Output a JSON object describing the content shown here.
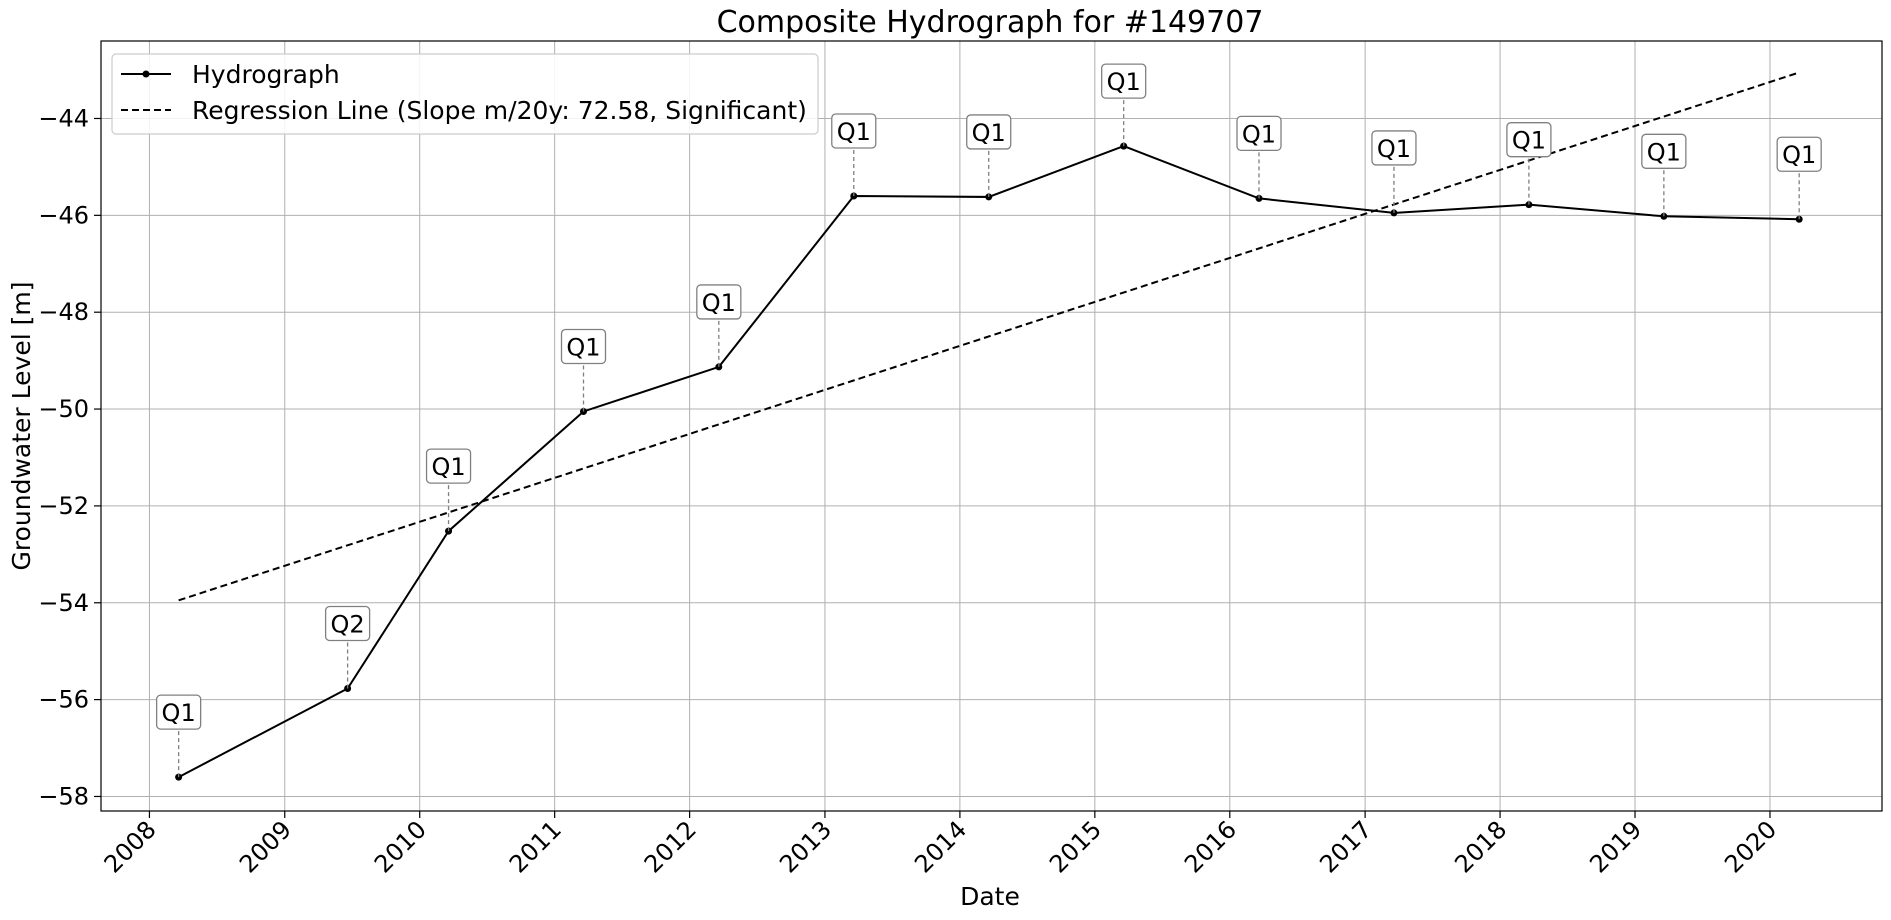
{
  "chart_data": {
    "type": "line",
    "title": "Composite Hydrograph for  #149707",
    "xlabel": "Date",
    "ylabel": "Groundwater Level [m]",
    "x_ticks": [
      "2008",
      "2009",
      "2010",
      "2011",
      "2012",
      "2013",
      "2014",
      "2015",
      "2016",
      "2017",
      "2018",
      "2019",
      "2020"
    ],
    "y_ticks": [
      "−58",
      "−56",
      "−54",
      "−52",
      "−50",
      "−48",
      "−46",
      "−44"
    ],
    "y_tick_values": [
      -58,
      -56,
      -54,
      -52,
      -50,
      -48,
      -46,
      -44
    ],
    "xlim": [
      "2007-08-23",
      "2020-10-30"
    ],
    "ylim": [
      -58.3,
      -42.4
    ],
    "grid": true,
    "legend_position": "top-left",
    "series": [
      {
        "name": "Hydrograph",
        "color": "#000000",
        "style": "solid-with-dot-markers",
        "x": [
          "2008-03-20",
          "2009-06-20",
          "2010-03-20",
          "2011-03-20",
          "2012-03-20",
          "2013-03-20",
          "2014-03-20",
          "2015-03-20",
          "2016-03-20",
          "2017-03-20",
          "2018-03-20",
          "2019-03-20",
          "2020-03-20"
        ],
        "values": [
          -57.6,
          -55.77,
          -52.52,
          -50.05,
          -49.13,
          -45.6,
          -45.62,
          -44.57,
          -45.65,
          -45.95,
          -45.78,
          -46.02,
          -46.08
        ],
        "quality_labels": [
          "Q1",
          "Q2",
          "Q1",
          "Q1",
          "Q1",
          "Q1",
          "Q1",
          "Q1",
          "Q1",
          "Q1",
          "Q1",
          "Q1",
          "Q1"
        ]
      },
      {
        "name": "Regression Line (Slope m/20y: 72.58, Significant)",
        "color": "#000000",
        "style": "dashed",
        "x": [
          "2008-03-20",
          "2020-03-20"
        ],
        "values": [
          -53.95,
          -43.05
        ]
      }
    ]
  }
}
